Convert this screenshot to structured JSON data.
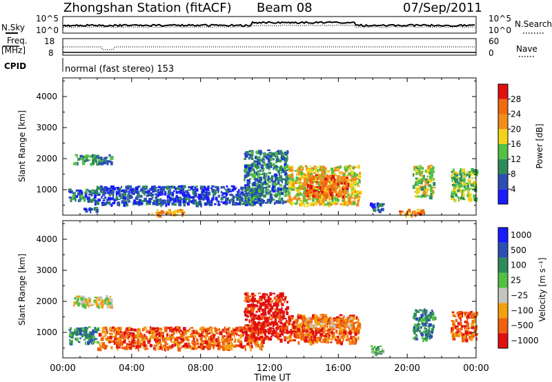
{
  "header": {
    "station": "Zhongshan Station (fitACF)",
    "beam": "Beam 08",
    "date": "07/Sep/2011"
  },
  "status_panels": {
    "nsky_label": "N.Sky",
    "nsearch_label": "N.Search",
    "count_ticks": [
      "10^5",
      "10^0"
    ],
    "freq_label": "Freq.",
    "freq_unit": "[MHz]",
    "freq_ticks": [
      "18",
      "8"
    ],
    "nave_label": "Nave",
    "nave_ticks": [
      "60",
      "0"
    ],
    "cpid_label": "CPID",
    "cpid_text": "normal (fast stereo) 153"
  },
  "colors": {
    "power": [
      "#1a1aff",
      "#2a4fb0",
      "#2e8a5a",
      "#52c044",
      "#f2d31a",
      "#f28c1a",
      "#f06a10",
      "#e01010"
    ],
    "velocity": [
      "#e01010",
      "#f06010",
      "#f2a010",
      "#c4c4c0",
      "#52c044",
      "#2e8a5a",
      "#2a4fb0",
      "#1a1aff"
    ]
  },
  "chart_data": [
    {
      "type": "heatmap",
      "name": "power",
      "ylabel": "Slant Range [km]",
      "xlabel": "Time UT",
      "x_ticks": [
        "00:00",
        "04:00",
        "08:00",
        "12:00",
        "16:00",
        "20:00",
        "00:00"
      ],
      "x_range_hours": [
        0,
        24
      ],
      "y_ticks": [
        1000,
        2000,
        3000,
        4000
      ],
      "ylim": [
        180,
        4600
      ],
      "colorbar_label": "Power [dB]",
      "colorbar_ticks": [
        4,
        8,
        12,
        16,
        20,
        24,
        28
      ],
      "colorbar_range": [
        0,
        32
      ],
      "scatter_regions": [
        {
          "t": [
            0.6,
            2.8
          ],
          "r": [
            1850,
            2150
          ],
          "level": 10
        },
        {
          "t": [
            0.3,
            1.8
          ],
          "r": [
            650,
            1050
          ],
          "level": 8
        },
        {
          "t": [
            1.8,
            11.6
          ],
          "r": [
            550,
            1150
          ],
          "level": 5
        },
        {
          "t": [
            1.2,
            2.2
          ],
          "r": [
            350,
            450
          ],
          "level": 5
        },
        {
          "t": [
            5.0,
            7.0
          ],
          "r": [
            220,
            380
          ],
          "level": 22
        },
        {
          "t": [
            10.5,
            13.0
          ],
          "r": [
            600,
            2300
          ],
          "level": 9
        },
        {
          "t": [
            13.0,
            17.2
          ],
          "r": [
            550,
            1800
          ],
          "level": 18
        },
        {
          "t": [
            14.0,
            16.5
          ],
          "r": [
            800,
            1500
          ],
          "level": 25
        },
        {
          "t": [
            17.8,
            18.6
          ],
          "r": [
            350,
            600
          ],
          "level": 6
        },
        {
          "t": [
            19.5,
            21.0
          ],
          "r": [
            200,
            400
          ],
          "level": 24
        },
        {
          "t": [
            20.3,
            21.5
          ],
          "r": [
            800,
            1800
          ],
          "level": 16
        },
        {
          "t": [
            22.5,
            24.0
          ],
          "r": [
            700,
            1700
          ],
          "level": 14
        }
      ]
    },
    {
      "type": "heatmap",
      "name": "velocity",
      "ylabel": "Slant Range [km]",
      "xlabel": "Time UT",
      "x_ticks": [
        "00:00",
        "04:00",
        "08:00",
        "12:00",
        "16:00",
        "20:00",
        "00:00"
      ],
      "x_range_hours": [
        0,
        24
      ],
      "y_ticks": [
        1000,
        2000,
        3000,
        4000
      ],
      "ylim": [
        180,
        4600
      ],
      "colorbar_label": "Velocity [m s⁻¹]",
      "colorbar_ticks": [
        "1000",
        "500",
        "100",
        "25",
        "−25",
        "−100",
        "−500",
        "−1000"
      ],
      "scatter_regions": [
        {
          "t": [
            0.6,
            2.8
          ],
          "r": [
            1850,
            2200
          ],
          "class": 3
        },
        {
          "t": [
            0.3,
            2.0
          ],
          "r": [
            700,
            1200
          ],
          "class": 5
        },
        {
          "t": [
            2.0,
            11.6
          ],
          "r": [
            500,
            1200
          ],
          "class": 1
        },
        {
          "t": [
            10.5,
            13.0
          ],
          "r": [
            800,
            2300
          ],
          "class": 0
        },
        {
          "t": [
            13.0,
            17.2
          ],
          "r": [
            700,
            1600
          ],
          "class": 1
        },
        {
          "t": [
            14.0,
            16.8
          ],
          "r": [
            1200,
            1500
          ],
          "class": 2
        },
        {
          "t": [
            17.8,
            18.6
          ],
          "r": [
            300,
            600
          ],
          "class": 4
        },
        {
          "t": [
            20.3,
            21.5
          ],
          "r": [
            800,
            1800
          ],
          "class": 5
        },
        {
          "t": [
            22.5,
            24.0
          ],
          "r": [
            800,
            1700
          ],
          "class": 1
        }
      ]
    }
  ]
}
